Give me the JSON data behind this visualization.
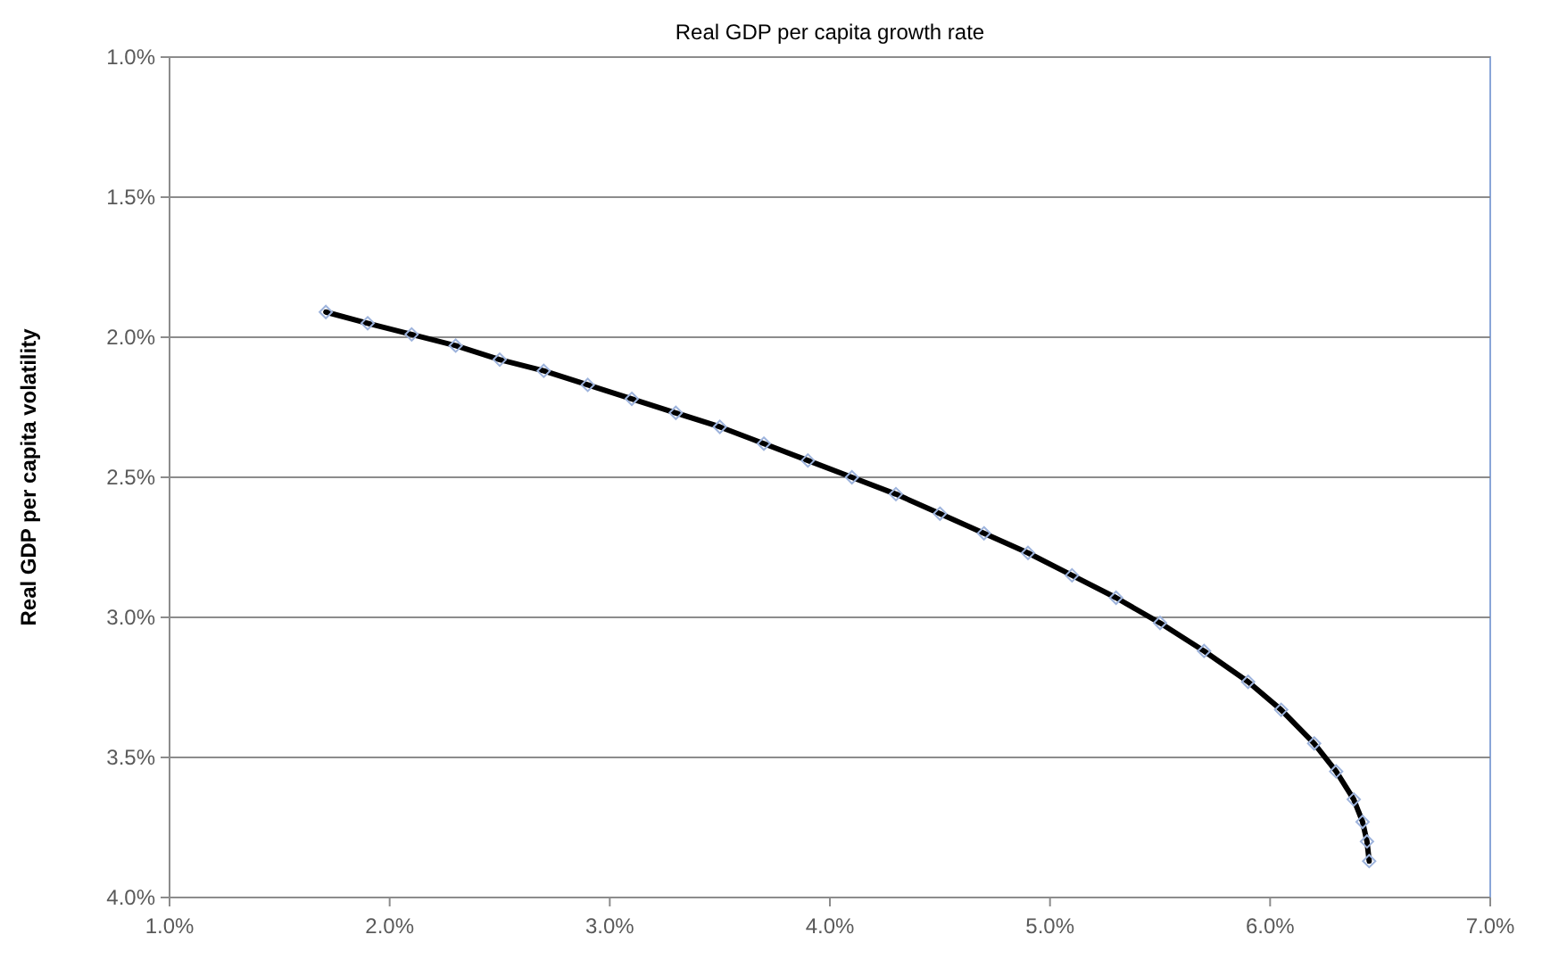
{
  "chart_data": {
    "type": "line",
    "title": "Real GDP per capita growth rate",
    "ylabel": "Real GDP per capita volatility",
    "xlim": [
      0.01,
      0.07
    ],
    "xticks": [
      {
        "value": 0.01,
        "label": "1.0%"
      },
      {
        "value": 0.02,
        "label": "2.0%"
      },
      {
        "value": 0.03,
        "label": "3.0%"
      },
      {
        "value": 0.04,
        "label": "4.0%"
      },
      {
        "value": 0.05,
        "label": "5.0%"
      },
      {
        "value": 0.06,
        "label": "6.0%"
      },
      {
        "value": 0.07,
        "label": "7.0%"
      }
    ],
    "ylim": [
      0.04,
      0.01
    ],
    "yticks": [
      {
        "value": 0.01,
        "label": "1.0%"
      },
      {
        "value": 0.015,
        "label": "1.5%"
      },
      {
        "value": 0.02,
        "label": "2.0%"
      },
      {
        "value": 0.025,
        "label": "2.5%"
      },
      {
        "value": 0.03,
        "label": "3.0%"
      },
      {
        "value": 0.035,
        "label": "3.5%"
      },
      {
        "value": 0.04,
        "label": "4.0%"
      }
    ],
    "grid": "y",
    "marker": "diamond",
    "line_style": "solid",
    "series": [
      {
        "color": "#000000",
        "x": [
          0.0171,
          0.019,
          0.021,
          0.023,
          0.025,
          0.027,
          0.029,
          0.031,
          0.033,
          0.035,
          0.037,
          0.039,
          0.041,
          0.043,
          0.045,
          0.047,
          0.049,
          0.051,
          0.053,
          0.055,
          0.057,
          0.059,
          0.0605,
          0.062,
          0.063,
          0.0638,
          0.0642,
          0.0644,
          0.0645
        ],
        "values": [
          0.0191,
          0.0195,
          0.0199,
          0.0203,
          0.0208,
          0.0212,
          0.0217,
          0.0222,
          0.0227,
          0.0232,
          0.0238,
          0.0244,
          0.025,
          0.0256,
          0.0263,
          0.027,
          0.0277,
          0.0285,
          0.0293,
          0.0302,
          0.0312,
          0.0323,
          0.0333,
          0.0345,
          0.0355,
          0.0365,
          0.0373,
          0.038,
          0.0387
        ]
      }
    ]
  }
}
